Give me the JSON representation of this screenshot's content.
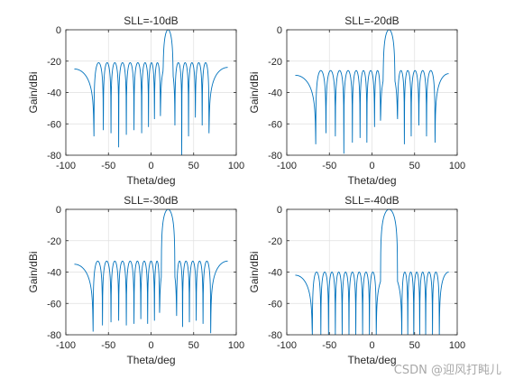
{
  "chart_data": [
    {
      "type": "line",
      "title": "SLL=-10dB",
      "xlabel": "Theta/deg",
      "ylabel": "Gain/dBi",
      "xlim": [
        -100,
        100
      ],
      "ylim": [
        -80,
        0
      ],
      "xticks": [
        -100,
        -50,
        0,
        50,
        100
      ],
      "yticks": [
        -80,
        -60,
        -40,
        -20,
        0
      ],
      "grid": true,
      "series": [
        {
          "color": "#0072BD",
          "main_lobe_deg": 20,
          "main_lobe_half_width_deg": 6,
          "sidelobe_level_db": -21,
          "left_edge_level_db": -25,
          "right_edge_level_db": -24,
          "nulls": [
            {
              "x": -67,
              "y": -68
            },
            {
              "x": -56,
              "y": -64
            },
            {
              "x": -47,
              "y": -66
            },
            {
              "x": -38,
              "y": -75
            },
            {
              "x": -29,
              "y": -67
            },
            {
              "x": -20,
              "y": -64
            },
            {
              "x": -11,
              "y": -66
            },
            {
              "x": -3,
              "y": -62
            },
            {
              "x": 4,
              "y": -57
            },
            {
              "x": 11,
              "y": -55
            },
            {
              "x": 28,
              "y": -61
            },
            {
              "x": 36,
              "y": -80
            },
            {
              "x": 44,
              "y": -68
            },
            {
              "x": 52,
              "y": -56
            },
            {
              "x": 60,
              "y": -61
            },
            {
              "x": 68,
              "y": -66
            }
          ]
        }
      ]
    },
    {
      "type": "line",
      "title": "SLL=-20dB",
      "xlabel": "Theta/deg",
      "ylabel": "Gain/dBi",
      "xlim": [
        -100,
        100
      ],
      "ylim": [
        -80,
        0
      ],
      "xticks": [
        -100,
        -50,
        0,
        50,
        100
      ],
      "yticks": [
        -80,
        -60,
        -40,
        -20,
        0
      ],
      "grid": true,
      "series": [
        {
          "color": "#0072BD",
          "main_lobe_deg": 20,
          "main_lobe_half_width_deg": 7,
          "sidelobe_level_db": -26,
          "left_edge_level_db": -29,
          "right_edge_level_db": -28,
          "nulls": [
            {
              "x": -66,
              "y": -73
            },
            {
              "x": -54,
              "y": -66
            },
            {
              "x": -43,
              "y": -68
            },
            {
              "x": -33,
              "y": -79
            },
            {
              "x": -23,
              "y": -72
            },
            {
              "x": -14,
              "y": -69
            },
            {
              "x": -6,
              "y": -72
            },
            {
              "x": 3,
              "y": -62
            },
            {
              "x": 10,
              "y": -58
            },
            {
              "x": 30,
              "y": -57
            },
            {
              "x": 38,
              "y": -73
            },
            {
              "x": 46,
              "y": -68
            },
            {
              "x": 55,
              "y": -61
            },
            {
              "x": 64,
              "y": -68
            },
            {
              "x": 74,
              "y": -72
            }
          ]
        }
      ]
    },
    {
      "type": "line",
      "title": "SLL=-30dB",
      "xlabel": "Theta/deg",
      "ylabel": "Gain/dBi",
      "xlim": [
        -100,
        100
      ],
      "ylim": [
        -80,
        0
      ],
      "xticks": [
        -100,
        -50,
        0,
        50,
        100
      ],
      "yticks": [
        -80,
        -60,
        -40,
        -20,
        0
      ],
      "grid": true,
      "series": [
        {
          "color": "#0072BD",
          "main_lobe_deg": 20,
          "main_lobe_half_width_deg": 8,
          "sidelobe_level_db": -33,
          "left_edge_level_db": -35,
          "right_edge_level_db": -33,
          "nulls": [
            {
              "x": -68,
              "y": -78
            },
            {
              "x": -57,
              "y": -74
            },
            {
              "x": -47,
              "y": -72
            },
            {
              "x": -38,
              "y": -71
            },
            {
              "x": -29,
              "y": -74
            },
            {
              "x": -20,
              "y": -73
            },
            {
              "x": -12,
              "y": -70
            },
            {
              "x": -4,
              "y": -73
            },
            {
              "x": 4,
              "y": -71
            },
            {
              "x": 10,
              "y": -66
            },
            {
              "x": 30,
              "y": -68
            },
            {
              "x": 37,
              "y": -75
            },
            {
              "x": 45,
              "y": -72
            },
            {
              "x": 53,
              "y": -71
            },
            {
              "x": 61,
              "y": -73
            },
            {
              "x": 70,
              "y": -79
            }
          ]
        }
      ]
    },
    {
      "type": "line",
      "title": "SLL=-40dB",
      "xlabel": "Theta/deg",
      "ylabel": "Gain/dBi",
      "xlim": [
        -100,
        100
      ],
      "ylim": [
        -80,
        0
      ],
      "xticks": [
        -100,
        -50,
        0,
        50,
        100
      ],
      "yticks": [
        -80,
        -60,
        -40,
        -20,
        0
      ],
      "grid": true,
      "series": [
        {
          "color": "#0072BD",
          "main_lobe_deg": 20,
          "main_lobe_half_width_deg": 10,
          "sidelobe_level_db": -40,
          "left_edge_level_db": -42,
          "right_edge_level_db": -40,
          "nulls": [
            {
              "x": -70,
              "y": -80
            },
            {
              "x": -60,
              "y": -80
            },
            {
              "x": -51,
              "y": -80
            },
            {
              "x": -43,
              "y": -80
            },
            {
              "x": -35,
              "y": -80
            },
            {
              "x": -27,
              "y": -80
            },
            {
              "x": -19,
              "y": -80
            },
            {
              "x": -11,
              "y": -80
            },
            {
              "x": -3,
              "y": -80
            },
            {
              "x": 5,
              "y": -80
            },
            {
              "x": 35,
              "y": -80
            },
            {
              "x": 42,
              "y": -80
            },
            {
              "x": 49,
              "y": -80
            },
            {
              "x": 56,
              "y": -80
            },
            {
              "x": 63,
              "y": -80
            },
            {
              "x": 71,
              "y": -80
            },
            {
              "x": 79,
              "y": -80
            }
          ]
        }
      ]
    }
  ],
  "watermark": "CSDN @迎风打盹儿"
}
